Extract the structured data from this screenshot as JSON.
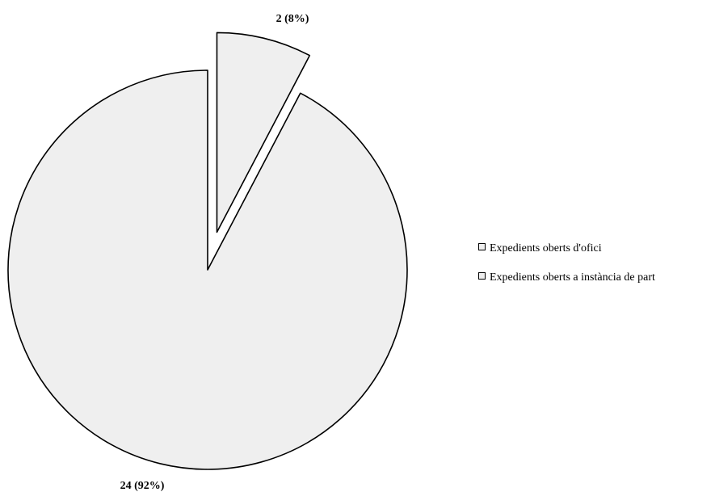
{
  "chart_data": {
    "type": "pie",
    "slices": [
      {
        "name": "Expedients oberts d'ofici",
        "value": 2,
        "percent": 8,
        "label": "2 (8%)",
        "exploded": true
      },
      {
        "name": "Expedients oberts a instància de part",
        "value": 24,
        "percent": 92,
        "label": "24 (92%)",
        "exploded": false
      }
    ],
    "legend": {
      "position": "right",
      "items": [
        "Expedients oberts d'ofici",
        "Expedients oberts a instància de part"
      ]
    },
    "colors": {
      "fill": "#efefef",
      "stroke": "#000000"
    }
  }
}
